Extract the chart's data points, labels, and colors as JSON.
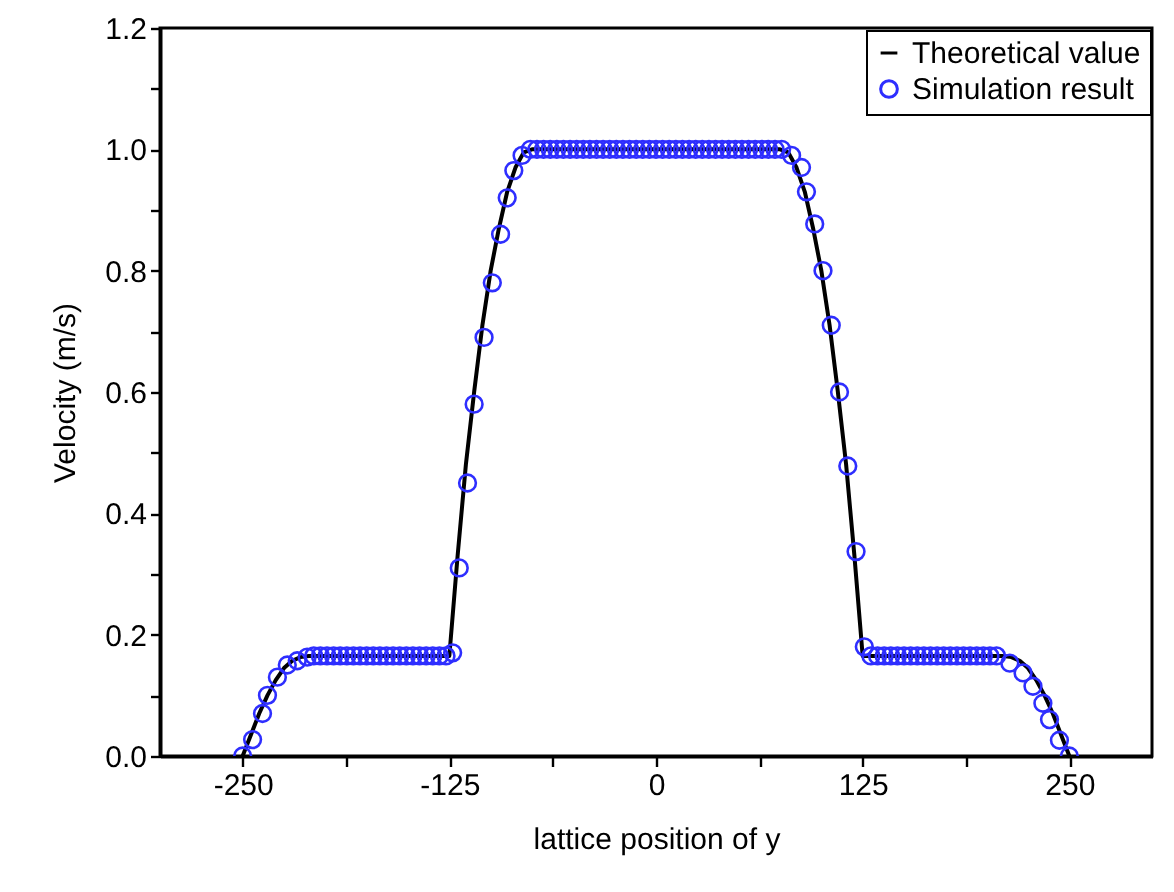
{
  "chart_data": {
    "type": "line",
    "xlabel": "lattice position of y",
    "ylabel": "Velocity (m/s)",
    "xlim": [
      -300,
      300
    ],
    "xticks": [
      -250,
      {
        "value": -187.5,
        "label": null
      },
      -125,
      {
        "value": -62.5,
        "label": null
      },
      0,
      {
        "value": 62.5,
        "label": null
      },
      125,
      {
        "value": 187.5,
        "label": null
      },
      250
    ],
    "ylim": [
      0,
      1.2
    ],
    "yticks": [
      "0.0",
      {
        "value": 0.1,
        "label": null
      },
      0.2,
      {
        "value": 0.3,
        "label": null
      },
      0.4,
      {
        "value": 0.5,
        "label": null
      },
      0.6,
      {
        "value": 0.7,
        "label": null
      },
      0.8,
      {
        "value": 0.9,
        "label": null
      },
      {
        "value": 1,
        "label": "1.0"
      },
      {
        "value": 1.1,
        "label": null
      },
      1.2
    ],
    "grid": false,
    "legend": "top right",
    "series": [
      {
        "name": "Theoretical value",
        "color": "#000000",
        "line_style": "solid",
        "x": [
          -250,
          -245,
          -240,
          -235,
          -230,
          -225,
          -220,
          -215,
          -210,
          -125,
          -120,
          -115,
          -110,
          -105,
          -100,
          -95,
          -90,
          -85,
          -80,
          -75,
          75,
          80,
          85,
          90,
          95,
          100,
          105,
          110,
          115,
          120,
          125,
          210,
          215,
          220,
          225,
          230,
          235,
          240,
          245,
          250
        ],
        "values": [
          0,
          0.035,
          0.07,
          0.1,
          0.125,
          0.145,
          0.157,
          0.163,
          0.165,
          0.165,
          0.33,
          0.48,
          0.6,
          0.71,
          0.8,
          0.87,
          0.93,
          0.97,
          0.995,
          1,
          1,
          0.995,
          0.97,
          0.93,
          0.87,
          0.8,
          0.71,
          0.6,
          0.48,
          0.33,
          0.165,
          0.165,
          0.163,
          0.157,
          0.145,
          0.125,
          0.1,
          0.07,
          0.035,
          0
        ]
      },
      {
        "name": "Simulation result",
        "type": "scatter",
        "color": "#2e2eff",
        "marker": "circle",
        "x": [
          -250,
          -244,
          -238,
          -235,
          -229,
          -223,
          -217,
          -211,
          -207,
          -203,
          -199,
          -195,
          -191,
          -187,
          -183,
          -179,
          -175,
          -171,
          -167,
          -163,
          -159,
          -155,
          -151,
          -147,
          -143,
          -139,
          -135,
          -131,
          -127,
          -123,
          -119,
          -114,
          -110,
          -104,
          -99,
          -94,
          -90,
          -86,
          -81,
          -76,
          -72,
          -68,
          -64,
          -60,
          -56,
          -52,
          -48,
          -44,
          -40,
          -36,
          -32,
          -28,
          -24,
          -20,
          -16,
          -12,
          -8,
          -4,
          0,
          4,
          8,
          12,
          16,
          20,
          24,
          28,
          32,
          36,
          40,
          44,
          48,
          52,
          56,
          60,
          64,
          68,
          72,
          76,
          82,
          88,
          91,
          96,
          101,
          106,
          111,
          116,
          121,
          126,
          130,
          134,
          138,
          142,
          146,
          150,
          154,
          158,
          162,
          166,
          170,
          174,
          178,
          182,
          186,
          190,
          194,
          198,
          202,
          206,
          214,
          222,
          228,
          234,
          238,
          244,
          250
        ],
        "values": [
          0,
          0.027,
          0.07,
          0.1,
          0.13,
          0.15,
          0.157,
          0.163,
          0.165,
          0.165,
          0.165,
          0.165,
          0.165,
          0.165,
          0.165,
          0.165,
          0.165,
          0.165,
          0.165,
          0.165,
          0.165,
          0.165,
          0.165,
          0.165,
          0.165,
          0.165,
          0.165,
          0.165,
          0.165,
          0.17,
          0.31,
          0.45,
          0.58,
          0.69,
          0.78,
          0.86,
          0.92,
          0.965,
          0.99,
          1,
          1,
          1,
          1,
          1,
          1,
          1,
          1,
          1,
          1,
          1,
          1,
          1,
          1,
          1,
          1,
          1,
          1,
          1,
          1,
          1,
          1,
          1,
          1,
          1,
          1,
          1,
          1,
          1,
          1,
          1,
          1,
          1,
          1,
          1,
          1,
          1,
          1,
          1,
          0.99,
          0.97,
          0.93,
          0.877,
          0.8,
          0.71,
          0.6,
          0.478,
          0.337,
          0.18,
          0.165,
          0.165,
          0.165,
          0.165,
          0.165,
          0.165,
          0.165,
          0.165,
          0.165,
          0.165,
          0.165,
          0.165,
          0.165,
          0.165,
          0.165,
          0.165,
          0.165,
          0.165,
          0.165,
          0.165,
          0.153,
          0.137,
          0.115,
          0.087,
          0.06,
          0.026,
          0
        ]
      }
    ]
  }
}
